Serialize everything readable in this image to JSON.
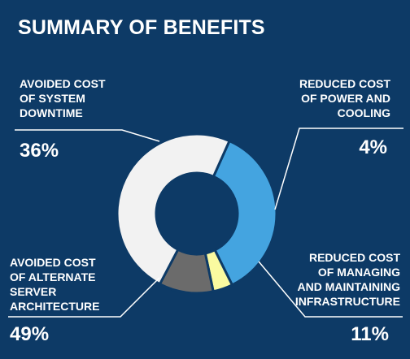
{
  "title": "SUMMARY OF BENEFITS",
  "chart_data": {
    "type": "pie",
    "style": "donut",
    "categories": [
      "AVOIDED COST OF SYSTEM DOWNTIME",
      "REDUCED COST OF POWER AND COOLING",
      "REDUCED COST OF MANAGING AND MAINTAINING INFRASTRUCTURE",
      "AVOIDED COST OF ALTERNATE SERVER ARCHITECTURE"
    ],
    "values": [
      36,
      4,
      11,
      49
    ],
    "value_labels": [
      "36%",
      "4%",
      "11%",
      "49%"
    ],
    "colors": [
      "#44a4e0",
      "#fafaa0",
      "#6b6b6b",
      "#f2f2f2"
    ]
  },
  "labels": {
    "downtime": {
      "lines": [
        "AVOIDED COST",
        "OF SYSTEM",
        "DOWNTIME"
      ],
      "pct": "36%"
    },
    "power": {
      "lines": [
        "REDUCED COST",
        "OF POWER AND",
        "COOLING"
      ],
      "pct": "4%"
    },
    "managing": {
      "lines": [
        "REDUCED COST",
        "OF MANAGING",
        "AND MAINTAINING",
        "INFRASTRUCTURE"
      ],
      "pct": "11%"
    },
    "alternate": {
      "lines": [
        "AVOIDED COST",
        "OF ALTERNATE",
        "SERVER",
        "ARCHITECTURE"
      ],
      "pct": "49%"
    }
  }
}
